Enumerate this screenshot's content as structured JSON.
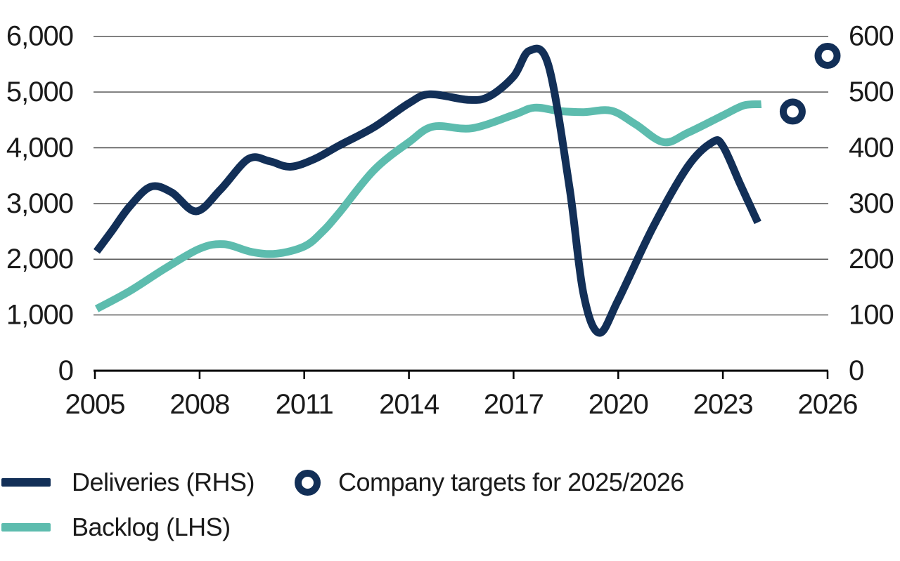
{
  "page": {
    "background": "#ffffff"
  },
  "colors": {
    "deliveries_line": "#122f57",
    "backlog_line": "#5dbcae",
    "target_ring": "#122f57",
    "gridline": "#4a4a4a",
    "axis_line": "#000000",
    "text": "#1a1a1a"
  },
  "chart_data": {
    "type": "line",
    "title": "",
    "grid": "horizontal",
    "legend_position": "bottom-left",
    "x_axis": {
      "min": 2005,
      "max": 2026,
      "tick_years": [
        2005,
        2008,
        2011,
        2014,
        2017,
        2020,
        2023,
        2026
      ],
      "tick_labels": [
        "2005",
        "2008",
        "2011",
        "2014",
        "2017",
        "2020",
        "2023",
        "2026"
      ]
    },
    "left_axis": {
      "min": 0,
      "max": 6000,
      "tick_values": [
        0,
        1000,
        2000,
        3000,
        4000,
        5000,
        6000
      ],
      "tick_labels": [
        "0",
        "1,000",
        "2,000",
        "3,000",
        "4,000",
        "5,000",
        "6,000"
      ]
    },
    "right_axis": {
      "min": 0,
      "max": 600,
      "tick_values": [
        0,
        100,
        200,
        300,
        400,
        500,
        600
      ],
      "tick_labels": [
        "0",
        "100",
        "200",
        "300",
        "400",
        "500",
        "600"
      ]
    },
    "series": [
      {
        "name": "Backlog (LHS)",
        "style": "line",
        "axis": "left",
        "color": "#5dbcae",
        "points": [
          [
            2005.05,
            1110
          ],
          [
            2006,
            1430
          ],
          [
            2007,
            1830
          ],
          [
            2008,
            2190
          ],
          [
            2008.7,
            2270
          ],
          [
            2009.5,
            2130
          ],
          [
            2010.2,
            2100
          ],
          [
            2011,
            2230
          ],
          [
            2011.5,
            2480
          ],
          [
            2012,
            2830
          ],
          [
            2013,
            3600
          ],
          [
            2014,
            4100
          ],
          [
            2014.7,
            4380
          ],
          [
            2015.8,
            4350
          ],
          [
            2017,
            4590
          ],
          [
            2017.6,
            4720
          ],
          [
            2018.3,
            4660
          ],
          [
            2019,
            4640
          ],
          [
            2019.8,
            4665
          ],
          [
            2020.5,
            4420
          ],
          [
            2021.3,
            4100
          ],
          [
            2022,
            4270
          ],
          [
            2023,
            4580
          ],
          [
            2023.6,
            4760
          ],
          [
            2024.1,
            4780
          ]
        ]
      },
      {
        "name": "Deliveries (RHS)",
        "style": "line",
        "axis": "right",
        "color": "#122f57",
        "points": [
          [
            2005.05,
            214
          ],
          [
            2005.5,
            252
          ],
          [
            2006,
            295
          ],
          [
            2006.6,
            330
          ],
          [
            2007.2,
            320
          ],
          [
            2007.9,
            286
          ],
          [
            2008.6,
            325
          ],
          [
            2009.4,
            380
          ],
          [
            2010,
            376
          ],
          [
            2010.6,
            366
          ],
          [
            2011.3,
            380
          ],
          [
            2012,
            404
          ],
          [
            2013,
            437
          ],
          [
            2014,
            480
          ],
          [
            2014.6,
            496
          ],
          [
            2015.7,
            486
          ],
          [
            2016.3,
            492
          ],
          [
            2017,
            528
          ],
          [
            2017.45,
            574
          ],
          [
            2018,
            548
          ],
          [
            2018.6,
            330
          ],
          [
            2019,
            139
          ],
          [
            2019.45,
            68
          ],
          [
            2020,
            127
          ],
          [
            2021,
            258
          ],
          [
            2022,
            367
          ],
          [
            2022.7,
            410
          ],
          [
            2023,
            403
          ],
          [
            2023.5,
            334
          ],
          [
            2024,
            266
          ]
        ]
      },
      {
        "name": "Company targets for 2025/2026",
        "style": "ring-scatter",
        "axis": "right",
        "color": "#122f57",
        "points": [
          [
            2025,
            465
          ],
          [
            2026,
            565
          ]
        ]
      }
    ]
  },
  "legend": {
    "items": [
      {
        "label": "Deliveries (RHS)",
        "marker": "line",
        "color": "#122f57"
      },
      {
        "label": "Backlog (LHS)",
        "marker": "line",
        "color": "#5dbcae"
      },
      {
        "label": "Company targets for 2025/2026",
        "marker": "ring",
        "color": "#122f57"
      }
    ]
  }
}
